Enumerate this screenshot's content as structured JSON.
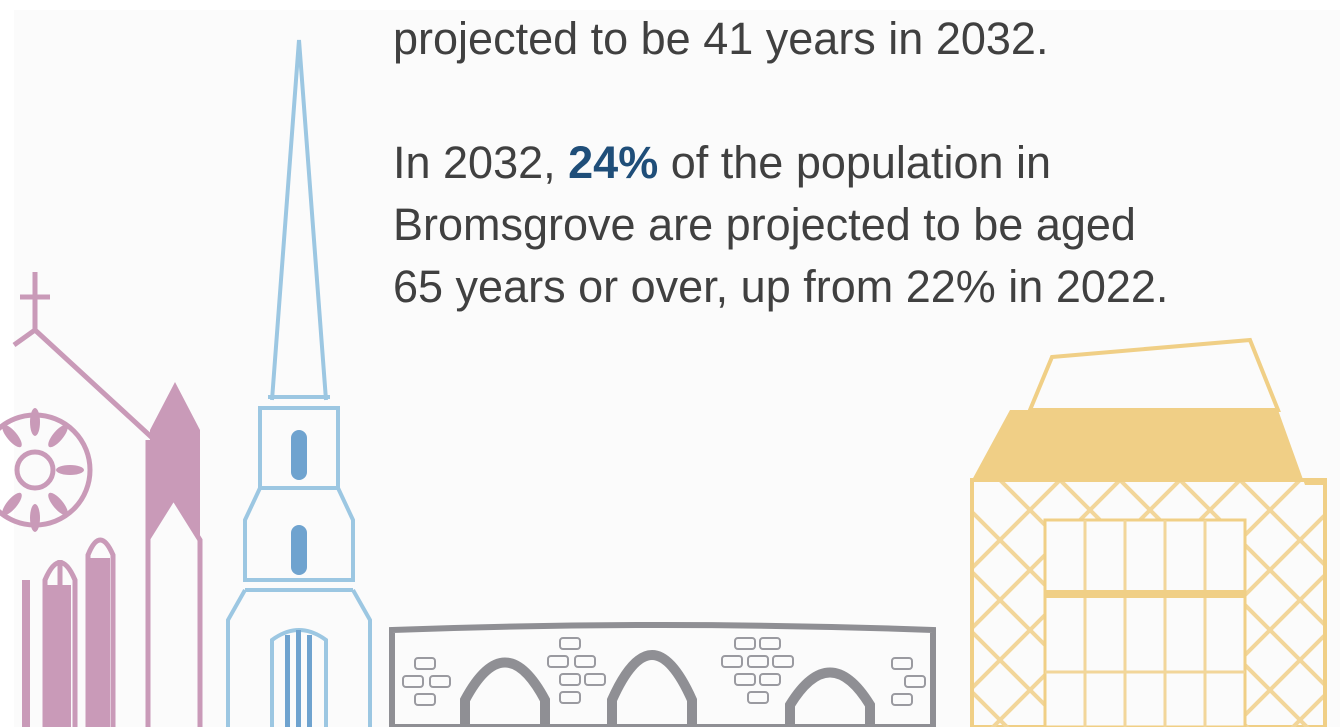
{
  "text": {
    "line_top": "projected to be 41 years in 2032.",
    "para2_prefix": "In 2032, ",
    "para2_highlight": "24%",
    "para2_suffix": " of the population in",
    "para2_line2": "Bromsgrove are projected to be aged",
    "para2_line3": "65 years or over, up from 22% in 2022."
  },
  "colors": {
    "highlight": "#1f4e79",
    "body_text": "#404040",
    "church": "#c99ab8",
    "spire": "#9cc7e2",
    "spire_window": "#6fa3cf",
    "bridge": "#8f8f94",
    "building": "#f0cf86"
  },
  "illustrations": [
    "church-illustration",
    "spire-illustration",
    "bridge-illustration",
    "timber-building-illustration"
  ]
}
